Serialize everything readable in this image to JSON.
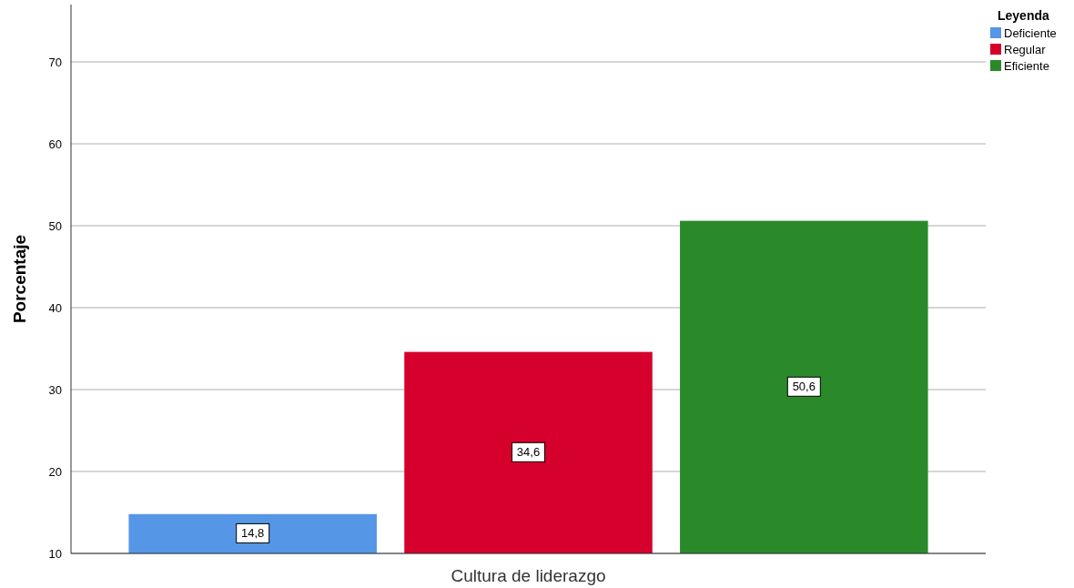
{
  "chart_data": {
    "type": "bar",
    "ylabel": "Porcentaje",
    "categories": [
      "Cultura de liderazgo"
    ],
    "series": [
      {
        "name": "Deficiente",
        "color": "#5596e6",
        "values": [
          14.8
        ],
        "value_labels": [
          "14,8"
        ]
      },
      {
        "name": "Regular",
        "color": "#d6002d",
        "values": [
          34.6
        ],
        "value_labels": [
          "34,6"
        ]
      },
      {
        "name": "Eficiente",
        "color": "#2a8a2a",
        "values": [
          50.6
        ],
        "value_labels": [
          "50,6"
        ]
      }
    ],
    "ylim": [
      10,
      77
    ],
    "yticks": [
      10,
      20,
      30,
      40,
      50,
      60,
      70
    ],
    "grid": "y",
    "legend": "top right",
    "legend_title": "Leyenda"
  }
}
